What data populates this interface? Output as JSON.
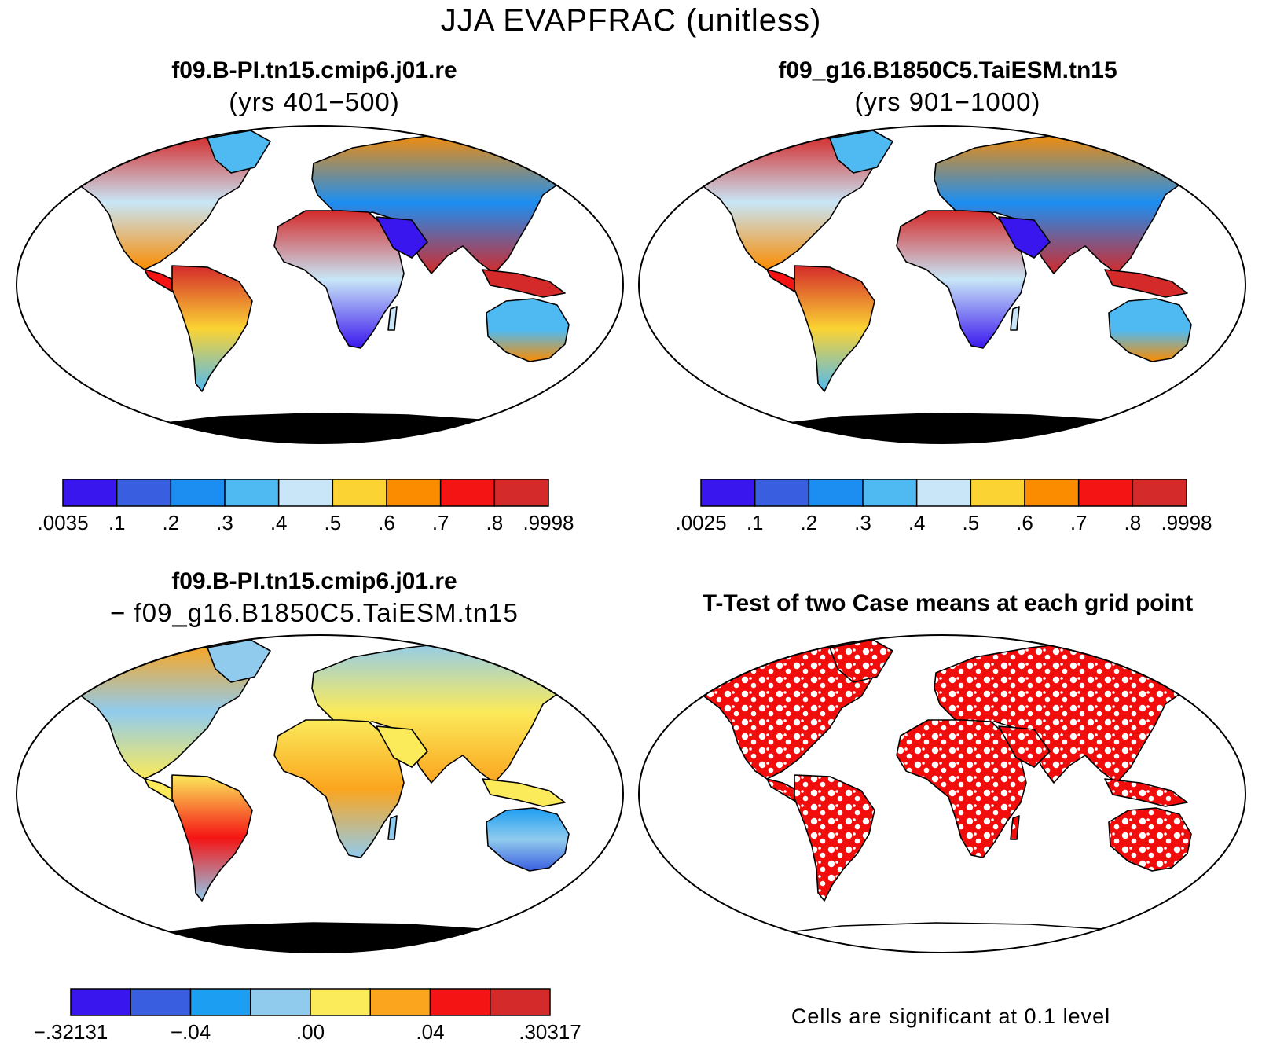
{
  "figure": {
    "title": "JJA EVAPFRAC (unitless)"
  },
  "panels": [
    {
      "id": "case1",
      "title_line1": "f09.B-PI.tn15.cmip6.j01.re",
      "title_line2": "(yrs 401−500)"
    },
    {
      "id": "case2",
      "title_line1": "f09_g16.B1850C5.TaiESM.tn15",
      "title_line2": "(yrs 901−1000)"
    },
    {
      "id": "diff",
      "title_line1": "f09.B-PI.tn15.cmip6.j01.re",
      "title_line2": "− f09_g16.B1850C5.TaiESM.tn15"
    },
    {
      "id": "ttest",
      "title_line1": "T-Test of two Case means at each grid point",
      "title_line2": ""
    }
  ],
  "colorbars": [
    {
      "id": "cb-case1",
      "colors": [
        "#3a16ee",
        "#3a5ee0",
        "#1c8ef2",
        "#4fbaf2",
        "#c8e6f7",
        "#fbd333",
        "#fb8c00",
        "#f51414",
        "#d42a2a"
      ],
      "labels": [
        ".0035",
        ".1",
        ".2",
        ".3",
        ".4",
        ".5",
        ".6",
        ".7",
        ".8",
        ".9998"
      ]
    },
    {
      "id": "cb-case2",
      "colors": [
        "#3a16ee",
        "#3a5ee0",
        "#1c8ef2",
        "#4fbaf2",
        "#c8e6f7",
        "#fbd333",
        "#fb8c00",
        "#f51414",
        "#d42a2a"
      ],
      "labels": [
        ".0025",
        ".1",
        ".2",
        ".3",
        ".4",
        ".5",
        ".6",
        ".7",
        ".8",
        ".9998"
      ]
    },
    {
      "id": "cb-diff",
      "colors": [
        "#3a16ee",
        "#3a5ee0",
        "#1c9ef2",
        "#90cbee",
        "#fbea5a",
        "#fba51e",
        "#f51414",
        "#d42a2a"
      ],
      "labels": [
        "−.32131",
        "−.04",
        ".00",
        ".04",
        ".30317"
      ]
    }
  ],
  "ttest": {
    "significant_color": "#f20d0d",
    "note": "Cells are significant at 0.1 level"
  }
}
